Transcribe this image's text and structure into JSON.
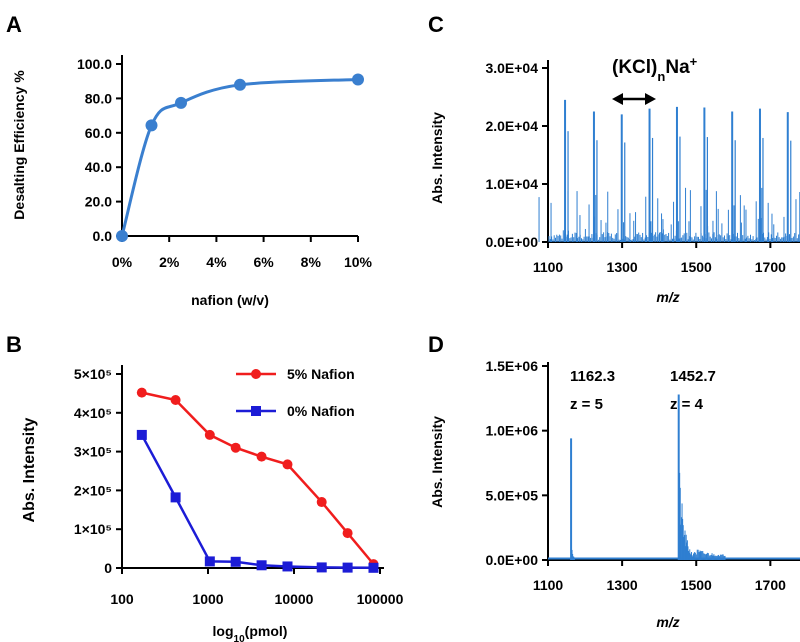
{
  "chart_data": [
    {
      "panel": "A",
      "type": "line",
      "x": [
        "0%",
        "1.25%",
        "2.5%",
        "5%",
        "10%"
      ],
      "x_values": [
        0,
        1.25,
        2.5,
        5,
        10
      ],
      "series": [
        {
          "values": [
            0.0,
            64.3,
            77.4,
            87.9,
            91.0
          ],
          "color": "#3a7fcf"
        }
      ],
      "xlabel": "nafion (w/v)",
      "ylabel": "Desalting Efficiency %",
      "xlim": [
        0,
        10
      ],
      "ylim": [
        0,
        100
      ],
      "xticks": [
        "0%",
        "2%",
        "4%",
        "6%",
        "8%",
        "10%"
      ],
      "yticks": [
        "0.0",
        "20.0",
        "40.0",
        "60.0",
        "80.0",
        "100.0"
      ],
      "grid": false
    },
    {
      "panel": "B",
      "type": "line",
      "xscale": "log",
      "x": [
        170,
        420,
        1050,
        2100,
        4200,
        8400,
        21000,
        42000,
        84000
      ],
      "series": [
        {
          "name": "5% Nafion",
          "values": [
            452000,
            433000,
            343000,
            310000,
            287000,
            267000,
            170000,
            90000,
            10000
          ],
          "color": "#f01d1d",
          "marker": "circle"
        },
        {
          "name": "0% Nafion",
          "values": [
            343000,
            182000,
            17000,
            16000,
            7000,
            4000,
            1500,
            1000,
            500
          ],
          "color": "#1c1cd6",
          "marker": "square"
        }
      ],
      "xlabel": "log10(pmol)",
      "ylabel": "Abs. Intensity",
      "xlim": [
        100,
        100000
      ],
      "ylim": [
        0,
        500000
      ],
      "xticks": [
        "100",
        "1000",
        "10000",
        "100000"
      ],
      "yticks": [
        "0",
        "1×10⁵",
        "2×10⁵",
        "3×10⁵",
        "4×10⁵",
        "5×10⁵"
      ],
      "legend": "top-right",
      "grid": false
    },
    {
      "panel": "C",
      "type": "bar",
      "annotation": "(KCl)nNa+",
      "x": [
        1146,
        1224,
        1299,
        1374,
        1448,
        1522,
        1597,
        1672,
        1747
      ],
      "values": [
        24500,
        22500,
        22000,
        23000,
        23300,
        23200,
        22500,
        23000,
        22400
      ],
      "xlabel": "m/z",
      "ylabel": "Abs. Intensity",
      "xlim": [
        1100,
        1780
      ],
      "ylim": [
        0,
        30000
      ],
      "xticks": [
        "1100",
        "1300",
        "1500",
        "1700"
      ],
      "yticks": [
        "0.0E+00",
        "1.0E+04",
        "2.0E+04",
        "3.0E+04"
      ],
      "color": "#2f7fd1"
    },
    {
      "panel": "D",
      "type": "bar",
      "annotations": [
        {
          "mz": "1162.3",
          "charge": "z = 5"
        },
        {
          "mz": "1452.7",
          "charge": "z = 4"
        }
      ],
      "x": [
        1162.3,
        1452.7
      ],
      "values": [
        940000,
        1280000
      ],
      "xlabel": "m/z",
      "ylabel": "Abs. Intensity",
      "xlim": [
        1100,
        1780
      ],
      "ylim": [
        0,
        1500000
      ],
      "xticks": [
        "1100",
        "1300",
        "1500",
        "1700"
      ],
      "yticks": [
        "0.0E+00",
        "5.0E+05",
        "1.0E+06",
        "1.5E+06"
      ],
      "color": "#2f7fd1"
    }
  ]
}
